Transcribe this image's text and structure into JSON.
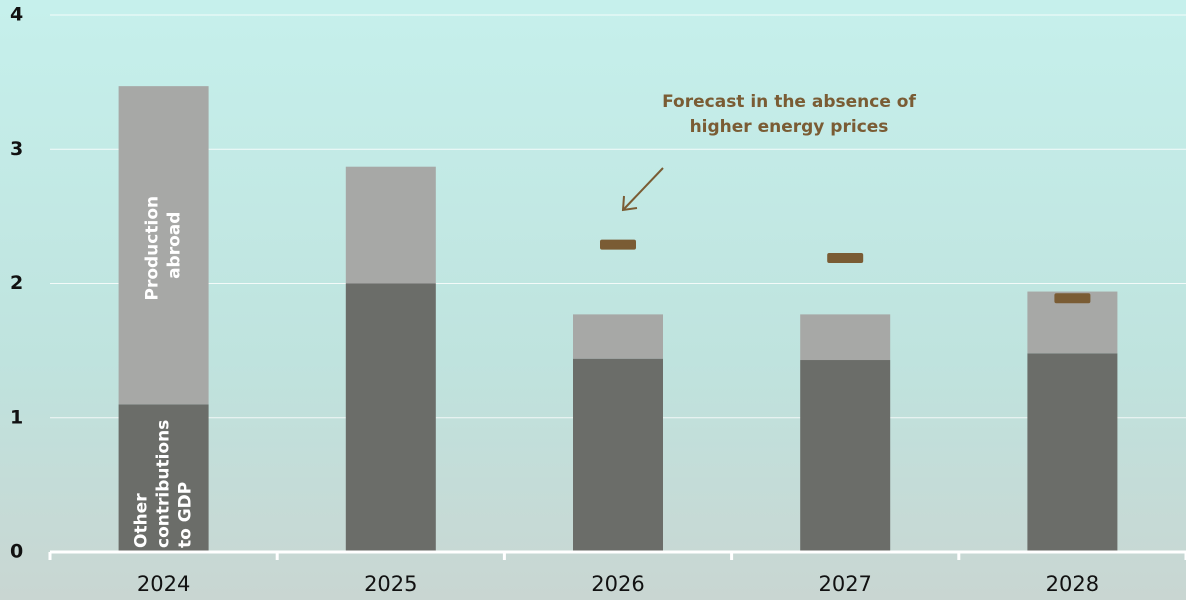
{
  "chart_data": {
    "type": "bar",
    "stacked": true,
    "categories": [
      "2024",
      "2025",
      "2026",
      "2027",
      "2028"
    ],
    "series": [
      {
        "name": "Other contributions to GDP",
        "color": "#6b6d69",
        "values": [
          1.1,
          2.0,
          1.44,
          1.43,
          1.48
        ]
      },
      {
        "name": "Production abroad",
        "color": "#a7a8a6",
        "values": [
          2.37,
          0.87,
          0.33,
          0.34,
          0.46
        ]
      }
    ],
    "markers": {
      "color": "#7a5c34",
      "values": [
        null,
        null,
        2.29,
        2.19,
        1.89
      ]
    },
    "annotation": [
      "Forecast in the absence of",
      "higher energy prices"
    ],
    "ylim": [
      0,
      4
    ],
    "yticks": [
      0,
      1,
      2,
      3,
      4
    ],
    "grid": true
  }
}
